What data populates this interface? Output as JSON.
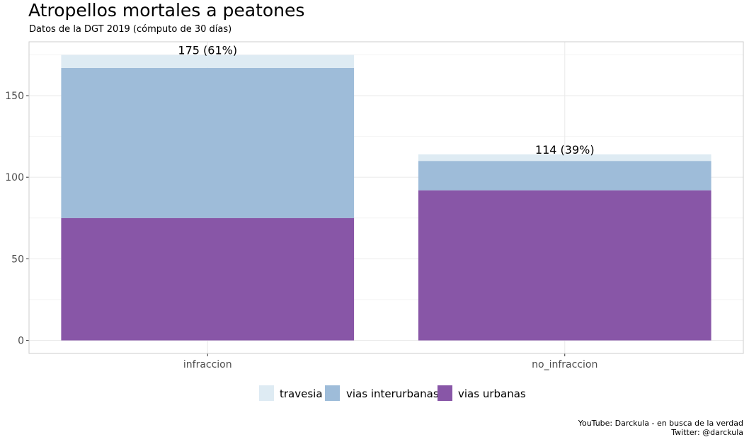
{
  "title": "Atropellos mortales a peatones",
  "subtitle": "Datos de la DGT 2019 (cómputo de 30 días)",
  "caption": [
    "YouTube: Darckula - en busca de la verdad",
    "Twitter: @darckula"
  ],
  "colors": {
    "travesia": "#deebf3",
    "vias interurbanas": "#9ebcd9",
    "vias urbanas": "#8856a7",
    "grid": "#ebebeb",
    "panel_border": "#cccccc"
  },
  "chart_data": {
    "type": "bar",
    "stacked": true,
    "categories": [
      "infraccion",
      "no_infraccion"
    ],
    "series": [
      {
        "name": "vias urbanas",
        "values": [
          75,
          92
        ]
      },
      {
        "name": "vias interurbanas",
        "values": [
          92,
          18
        ]
      },
      {
        "name": "travesia",
        "values": [
          8,
          4
        ]
      }
    ],
    "totals_labels": [
      "175 (61%)",
      "114 (39%)"
    ],
    "legend_order": [
      "travesia",
      "vias interurbanas",
      "vias urbanas"
    ],
    "legend_position": "bottom",
    "yticks": [
      0,
      50,
      100,
      150
    ],
    "ylim": [
      -8,
      183
    ],
    "grid": true
  }
}
